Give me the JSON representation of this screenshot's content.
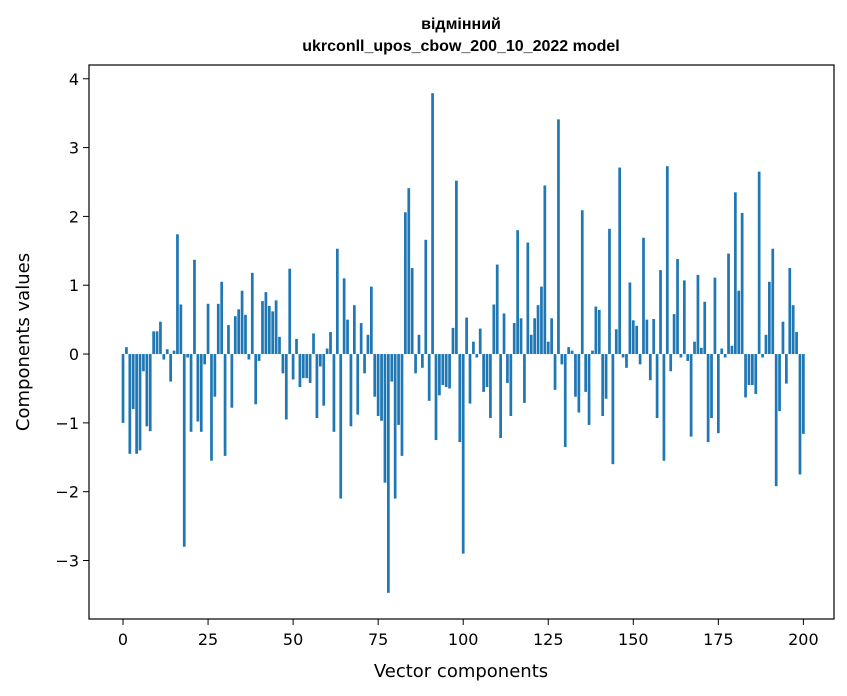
{
  "chart_data": {
    "type": "bar",
    "title_line1": "відмінний",
    "title_line2": "ukrconll_upos_cbow_200_10_2022 model",
    "xlabel": "Vector components",
    "ylabel": "Components values",
    "xlim": [
      -10,
      209
    ],
    "ylim": [
      -3.85,
      4.2
    ],
    "x_ticks": [
      0,
      25,
      50,
      75,
      100,
      125,
      150,
      175,
      200
    ],
    "x_tick_labels": [
      "0",
      "25",
      "50",
      "75",
      "100",
      "125",
      "150",
      "175",
      "200"
    ],
    "y_ticks": [
      -3,
      -2,
      -1,
      0,
      1,
      2,
      3,
      4
    ],
    "y_tick_labels": [
      "−3",
      "−2",
      "−1",
      "0",
      "1",
      "2",
      "3",
      "4"
    ],
    "bar_color": "#1f77b4",
    "values": [
      -1.0,
      0.1,
      -1.45,
      -0.8,
      -1.45,
      -1.4,
      -0.25,
      -1.05,
      -1.12,
      0.33,
      0.33,
      0.47,
      -0.08,
      0.07,
      -0.4,
      0.05,
      1.74,
      0.72,
      -2.8,
      -0.05,
      -1.13,
      1.37,
      -0.98,
      -1.13,
      -0.15,
      0.73,
      -1.55,
      -0.62,
      0.73,
      1.05,
      -1.48,
      0.42,
      -0.78,
      0.55,
      0.65,
      0.92,
      0.57,
      -0.08,
      1.18,
      -0.73,
      -0.1,
      0.77,
      0.9,
      0.7,
      0.62,
      0.78,
      0.25,
      -0.28,
      -0.95,
      1.24,
      -0.37,
      0.22,
      -0.48,
      -0.35,
      -0.35,
      -0.42,
      0.3,
      -0.93,
      -0.18,
      -0.75,
      0.08,
      0.32,
      -1.13,
      1.53,
      -2.1,
      1.1,
      0.5,
      -1.05,
      0.71,
      -0.88,
      0.45,
      -0.28,
      0.28,
      0.98,
      -0.62,
      -0.9,
      -0.97,
      -1.87,
      -3.47,
      -0.4,
      -2.1,
      -1.03,
      -1.48,
      2.06,
      2.41,
      1.25,
      -0.28,
      0.28,
      -0.2,
      1.66,
      -0.68,
      3.79,
      -1.25,
      -0.6,
      -0.45,
      -0.48,
      -0.5,
      0.38,
      2.52,
      -1.28,
      -2.9,
      0.53,
      -0.72,
      0.18,
      -0.05,
      0.37,
      -0.55,
      -0.48,
      -0.93,
      0.72,
      1.3,
      -1.22,
      0.59,
      -0.42,
      -0.9,
      0.45,
      1.8,
      0.52,
      -0.71,
      1.62,
      0.28,
      0.52,
      0.71,
      0.98,
      2.45,
      0.18,
      0.52,
      -0.52,
      3.41,
      -0.15,
      -1.35,
      0.1,
      0.05,
      -0.62,
      -0.85,
      2.09,
      -0.55,
      -1.03,
      0.05,
      0.69,
      0.64,
      -0.9,
      -0.65,
      1.82,
      -1.6,
      0.36,
      2.71,
      -0.05,
      -0.2,
      1.04,
      0.49,
      0.41,
      -0.15,
      1.69,
      0.5,
      -0.38,
      0.51,
      -0.93,
      1.22,
      -1.55,
      2.73,
      -0.25,
      0.58,
      1.38,
      -0.05,
      1.07,
      -0.1,
      -1.2,
      0.18,
      1.15,
      0.09,
      0.76,
      -1.28,
      -0.93,
      1.11,
      -1.15,
      0.08,
      -0.05,
      1.46,
      0.12,
      2.35,
      0.92,
      2.05,
      -0.63,
      -0.45,
      -0.45,
      -0.58,
      2.65,
      -0.05,
      0.28,
      1.05,
      1.53,
      -1.92,
      -0.83,
      0.47,
      -0.43,
      1.25,
      0.71,
      0.32,
      -1.75,
      -1.16
    ]
  }
}
